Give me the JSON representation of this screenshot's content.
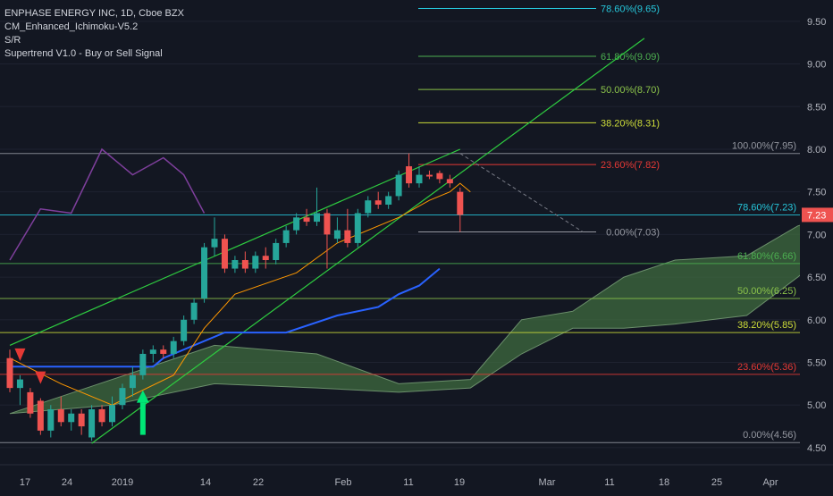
{
  "header": {
    "title": "ENPHASE ENERGY INC, 1D, Cboe BZX",
    "indicators": [
      "CM_Enhanced_Ichimoku-V5.2",
      "S/R",
      "Supertrend V1.0 - Buy or Sell Signal"
    ]
  },
  "price_label": "7.23",
  "colors": {
    "background": "#131722",
    "up": "#26a69a",
    "down": "#ef5350",
    "cloud": "#3f6b3f",
    "fib_low": "#4caf50",
    "fib_high": "#9ccc65",
    "fib_red": "#e53935",
    "channel": "#2ecc40",
    "supertrend_up": "#2962ff",
    "kijun": "#ff9800",
    "lagging": "#7e3f9c",
    "text": "#d1d4dc"
  },
  "chart_data": {
    "type": "candlestick",
    "ylim": [
      4.3,
      9.75
    ],
    "y_ticks": [
      "4.50",
      "5.00",
      "5.50",
      "6.00",
      "6.50",
      "7.00",
      "7.50",
      "8.00",
      "8.50",
      "9.00",
      "9.50"
    ],
    "x_ticks": [
      "17",
      "24",
      "2019",
      "14",
      "22",
      "Feb",
      "11",
      "19",
      "Mar",
      "11",
      "18",
      "25",
      "Apr"
    ],
    "candles": [
      {
        "o": 5.55,
        "h": 5.65,
        "l": 5.15,
        "c": 5.2
      },
      {
        "o": 5.2,
        "h": 5.35,
        "l": 5.0,
        "c": 5.3
      },
      {
        "o": 5.15,
        "h": 5.2,
        "l": 4.85,
        "c": 4.9
      },
      {
        "o": 5.05,
        "h": 5.08,
        "l": 4.65,
        "c": 4.7
      },
      {
        "o": 4.7,
        "h": 5.0,
        "l": 4.62,
        "c": 4.95
      },
      {
        "o": 4.95,
        "h": 5.1,
        "l": 4.75,
        "c": 4.8
      },
      {
        "o": 4.8,
        "h": 4.95,
        "l": 4.7,
        "c": 4.9
      },
      {
        "o": 4.9,
        "h": 4.95,
        "l": 4.65,
        "c": 4.75
      },
      {
        "o": 4.62,
        "h": 5.0,
        "l": 4.58,
        "c": 4.95
      },
      {
        "o": 4.95,
        "h": 5.0,
        "l": 4.75,
        "c": 4.8
      },
      {
        "o": 4.8,
        "h": 5.1,
        "l": 4.75,
        "c": 5.0
      },
      {
        "o": 5.0,
        "h": 5.25,
        "l": 4.95,
        "c": 5.2
      },
      {
        "o": 5.2,
        "h": 5.45,
        "l": 5.1,
        "c": 5.35
      },
      {
        "o": 5.35,
        "h": 5.65,
        "l": 5.3,
        "c": 5.6
      },
      {
        "o": 5.6,
        "h": 5.7,
        "l": 5.5,
        "c": 5.65
      },
      {
        "o": 5.65,
        "h": 5.7,
        "l": 5.55,
        "c": 5.6
      },
      {
        "o": 5.6,
        "h": 5.8,
        "l": 5.55,
        "c": 5.75
      },
      {
        "o": 5.75,
        "h": 6.05,
        "l": 5.7,
        "c": 6.0
      },
      {
        "o": 6.0,
        "h": 6.25,
        "l": 5.95,
        "c": 6.2
      },
      {
        "o": 6.25,
        "h": 6.9,
        "l": 6.2,
        "c": 6.85
      },
      {
        "o": 6.85,
        "h": 7.2,
        "l": 6.75,
        "c": 6.95
      },
      {
        "o": 6.95,
        "h": 7.0,
        "l": 6.55,
        "c": 6.6
      },
      {
        "o": 6.6,
        "h": 6.75,
        "l": 6.55,
        "c": 6.7
      },
      {
        "o": 6.7,
        "h": 6.8,
        "l": 6.55,
        "c": 6.6
      },
      {
        "o": 6.6,
        "h": 6.8,
        "l": 6.55,
        "c": 6.75
      },
      {
        "o": 6.75,
        "h": 6.85,
        "l": 6.6,
        "c": 6.7
      },
      {
        "o": 6.7,
        "h": 6.95,
        "l": 6.65,
        "c": 6.9
      },
      {
        "o": 6.9,
        "h": 7.1,
        "l": 6.85,
        "c": 7.05
      },
      {
        "o": 7.05,
        "h": 7.25,
        "l": 7.0,
        "c": 7.2
      },
      {
        "o": 7.2,
        "h": 7.3,
        "l": 7.1,
        "c": 7.15
      },
      {
        "o": 7.15,
        "h": 7.55,
        "l": 7.1,
        "c": 7.25
      },
      {
        "o": 7.25,
        "h": 7.3,
        "l": 6.6,
        "c": 7.0
      },
      {
        "o": 6.95,
        "h": 7.2,
        "l": 6.9,
        "c": 7.05
      },
      {
        "o": 7.05,
        "h": 7.3,
        "l": 6.85,
        "c": 6.9
      },
      {
        "o": 6.9,
        "h": 7.3,
        "l": 6.85,
        "c": 7.25
      },
      {
        "o": 7.25,
        "h": 7.45,
        "l": 7.2,
        "c": 7.4
      },
      {
        "o": 7.4,
        "h": 7.5,
        "l": 7.3,
        "c": 7.35
      },
      {
        "o": 7.35,
        "h": 7.5,
        "l": 7.3,
        "c": 7.45
      },
      {
        "o": 7.45,
        "h": 7.75,
        "l": 7.4,
        "c": 7.7
      },
      {
        "o": 7.8,
        "h": 7.95,
        "l": 7.55,
        "c": 7.6
      },
      {
        "o": 7.6,
        "h": 7.8,
        "l": 7.55,
        "c": 7.7
      },
      {
        "o": 7.7,
        "h": 7.75,
        "l": 7.65,
        "c": 7.68
      },
      {
        "o": 7.72,
        "h": 7.75,
        "l": 7.6,
        "c": 7.65
      },
      {
        "o": 7.65,
        "h": 7.7,
        "l": 7.55,
        "c": 7.6
      },
      {
        "o": 7.5,
        "h": 7.55,
        "l": 7.03,
        "c": 7.23
      }
    ],
    "fib_levels": [
      {
        "label": "100.00%(7.95)",
        "value": 7.95,
        "tone": "gray"
      },
      {
        "label": "78.60%(7.23)",
        "value": 7.23,
        "tone": "teal"
      },
      {
        "label": "61.80%(6.66)",
        "value": 6.66,
        "tone": "green"
      },
      {
        "label": "50.00%(6.25)",
        "value": 6.25,
        "tone": "lime"
      },
      {
        "label": "38.20%(5.85)",
        "value": 5.85,
        "tone": "yellowgreen"
      },
      {
        "label": "23.60%(5.36)",
        "value": 5.36,
        "tone": "red"
      },
      {
        "label": "0.00%(4.56)",
        "value": 4.56,
        "tone": "gray"
      }
    ],
    "fib_ext_levels": [
      {
        "label": "78.60%(9.65)",
        "value": 9.65,
        "tone": "teal"
      },
      {
        "label": "61.80%(9.09)",
        "value": 9.09,
        "tone": "green"
      },
      {
        "label": "50.00%(8.70)",
        "value": 8.7,
        "tone": "lime"
      },
      {
        "label": "38.20%(8.31)",
        "value": 8.31,
        "tone": "yellowgreen"
      },
      {
        "label": "23.60%(7.82)",
        "value": 7.82,
        "tone": "red"
      },
      {
        "label": "0.00%(7.03)",
        "value": 7.03,
        "tone": "gray"
      }
    ],
    "channel": {
      "upper": [
        [
          0,
          5.7
        ],
        [
          44,
          8.0
        ]
      ],
      "lower": [
        [
          8,
          4.55
        ],
        [
          62,
          9.3
        ]
      ],
      "mid": [
        [
          44,
          7.95
        ],
        [
          56,
          7.03
        ]
      ]
    },
    "cloud_top": [
      [
        15,
        5.5
      ],
      [
        20,
        5.7
      ],
      [
        30,
        5.6
      ],
      [
        38,
        5.25
      ],
      [
        45,
        5.3
      ],
      [
        50,
        6.0
      ],
      [
        55,
        6.1
      ],
      [
        60,
        6.5
      ],
      [
        65,
        6.7
      ],
      [
        72,
        6.75
      ],
      [
        77,
        7.1
      ],
      [
        80,
        7.2
      ],
      [
        83,
        7.1
      ]
    ],
    "cloud_bottom": [
      [
        0,
        4.9
      ],
      [
        10,
        5.0
      ],
      [
        20,
        5.25
      ],
      [
        30,
        5.2
      ],
      [
        38,
        5.15
      ],
      [
        45,
        5.2
      ],
      [
        50,
        5.6
      ],
      [
        55,
        5.9
      ],
      [
        60,
        5.9
      ],
      [
        65,
        5.95
      ],
      [
        72,
        6.05
      ],
      [
        77,
        6.5
      ],
      [
        80,
        6.8
      ],
      [
        83,
        6.9
      ]
    ],
    "supertrend": [
      [
        0,
        5.45
      ],
      [
        14,
        5.45
      ],
      [
        15,
        5.55
      ],
      [
        21,
        5.85
      ],
      [
        27,
        5.85
      ],
      [
        32,
        6.05
      ],
      [
        36,
        6.15
      ],
      [
        38,
        6.3
      ],
      [
        40,
        6.4
      ],
      [
        42,
        6.6
      ]
    ],
    "kijun": [
      [
        0,
        5.55
      ],
      [
        5,
        5.25
      ],
      [
        10,
        5.0
      ],
      [
        16,
        5.35
      ],
      [
        19,
        5.9
      ],
      [
        22,
        6.3
      ],
      [
        28,
        6.55
      ],
      [
        32,
        6.9
      ],
      [
        38,
        7.2
      ],
      [
        41,
        7.4
      ],
      [
        43,
        7.5
      ],
      [
        44,
        7.6
      ],
      [
        45,
        7.5
      ]
    ],
    "lagging": [
      [
        0,
        6.7
      ],
      [
        3,
        7.3
      ],
      [
        6,
        7.25
      ],
      [
        9,
        8.0
      ],
      [
        12,
        7.7
      ],
      [
        15,
        7.9
      ],
      [
        17,
        7.7
      ],
      [
        19,
        7.25
      ]
    ],
    "signals": [
      {
        "type": "sell",
        "index": 1
      },
      {
        "type": "sell",
        "index": 3
      },
      {
        "type": "buy",
        "index": 13
      }
    ]
  }
}
